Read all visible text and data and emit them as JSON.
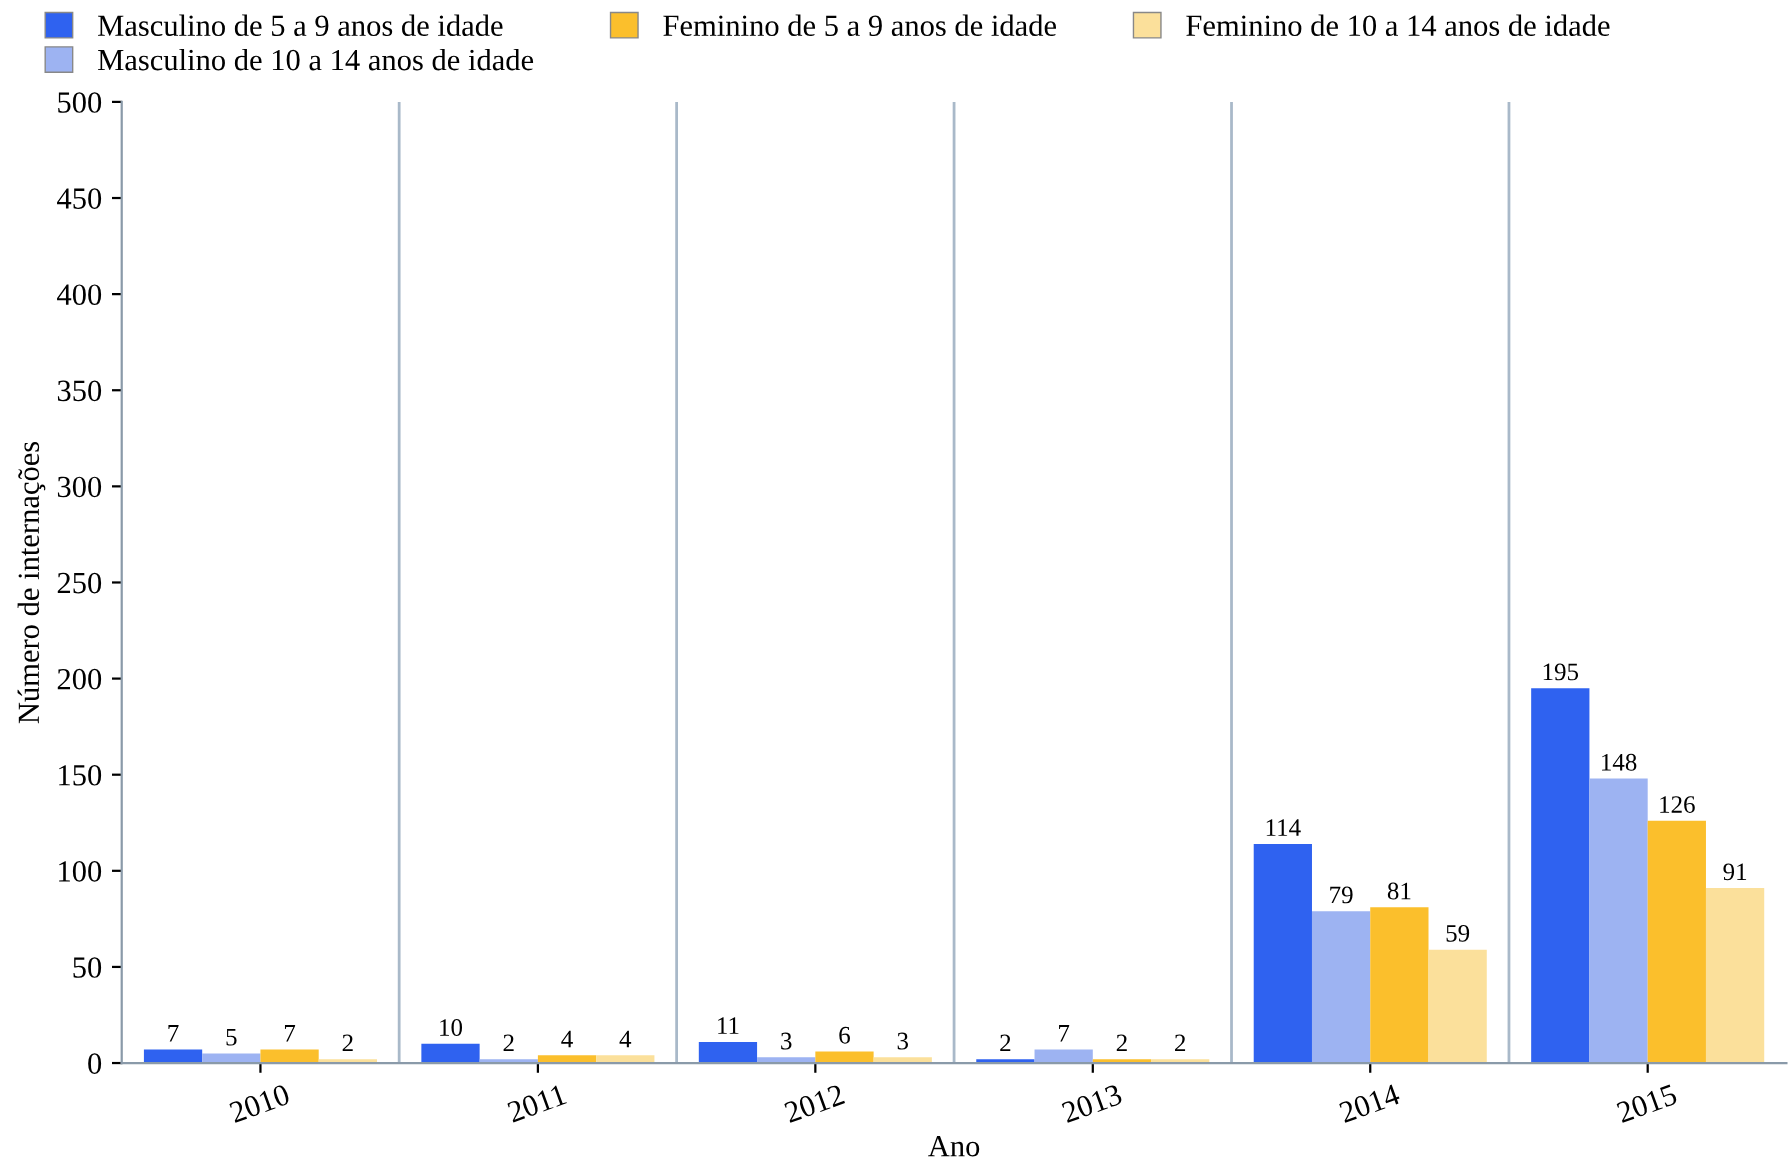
{
  "chart_data": {
    "type": "bar",
    "xlabel": "Ano",
    "ylabel": "Número de internações",
    "categories": [
      "2010",
      "2011",
      "2012",
      "2013",
      "2014",
      "2015"
    ],
    "series": [
      {
        "name": "Masculino de 5 a 9 anos de idade",
        "color": "#2f62f0",
        "values": [
          7,
          10,
          11,
          2,
          114,
          195
        ]
      },
      {
        "name": "Masculino de 10 a 14 anos de idade",
        "color": "#9db3f2",
        "values": [
          5,
          2,
          3,
          7,
          79,
          148
        ]
      },
      {
        "name": "Feminino de 5 a 9 anos de idade",
        "color": "#fbbf2c",
        "values": [
          7,
          4,
          6,
          2,
          81,
          126
        ]
      },
      {
        "name": "Feminino de 10 a 14 anos de idade",
        "color": "#fbe09b",
        "values": [
          2,
          4,
          3,
          2,
          59,
          91
        ]
      }
    ],
    "ylim": [
      0,
      500
    ],
    "yticks": [
      0,
      50,
      100,
      150,
      200,
      250,
      300,
      350,
      400,
      450,
      500
    ],
    "data_labels": true,
    "grid": "x",
    "legend": "top left"
  }
}
